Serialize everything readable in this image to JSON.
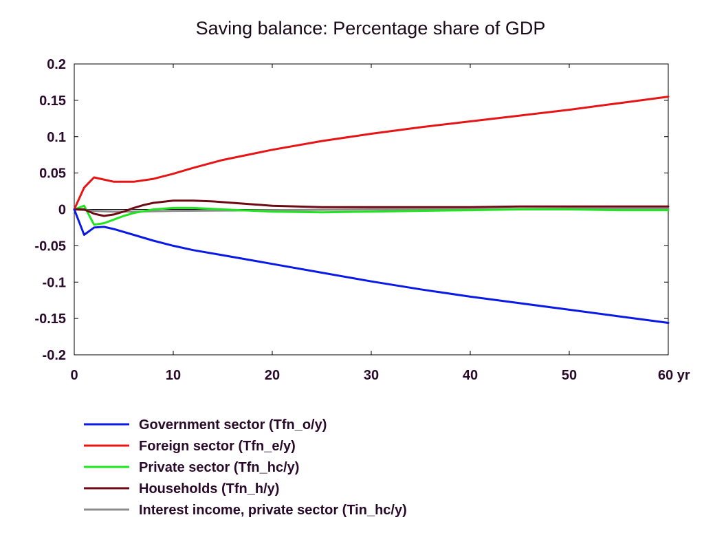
{
  "chart_data": {
    "type": "line",
    "title": "Saving balance: Percentage share of GDP",
    "xlabel": "",
    "ylabel": "",
    "xlim": [
      0,
      60
    ],
    "ylim": [
      -0.2,
      0.2
    ],
    "x_ticks": [
      0,
      10,
      20,
      30,
      40,
      50,
      60
    ],
    "x_tick_labels": [
      "0",
      "10",
      "20",
      "30",
      "40",
      "50",
      "60 yr"
    ],
    "y_ticks": [
      0.2,
      0.15,
      0.1,
      0.05,
      0,
      -0.05,
      -0.1,
      -0.15,
      -0.2
    ],
    "y_tick_labels": [
      "0.2",
      "0.15",
      "0.1",
      "0.05",
      "0",
      "-0.05",
      "-0.1",
      "-0.15",
      "-0.2"
    ],
    "grid": false,
    "legend_position": "bottom",
    "series": [
      {
        "name": "Government sector (Tfn_o/y)",
        "color": "#0a1ae6",
        "x": [
          0,
          1,
          2,
          3,
          4,
          6,
          8,
          10,
          12,
          15,
          20,
          25,
          30,
          35,
          40,
          45,
          50,
          55,
          60
        ],
        "y": [
          0,
          -0.035,
          -0.025,
          -0.024,
          -0.027,
          -0.035,
          -0.043,
          -0.05,
          -0.056,
          -0.063,
          -0.075,
          -0.087,
          -0.099,
          -0.11,
          -0.12,
          -0.129,
          -0.138,
          -0.147,
          -0.156
        ]
      },
      {
        "name": "Foreign sector (Tfn_e/y)",
        "color": "#e61414",
        "x": [
          0,
          1,
          2,
          3,
          4,
          5,
          6,
          8,
          10,
          12,
          15,
          20,
          25,
          30,
          35,
          40,
          45,
          50,
          55,
          60
        ],
        "y": [
          0,
          0.03,
          0.044,
          0.041,
          0.038,
          0.038,
          0.038,
          0.042,
          0.049,
          0.057,
          0.068,
          0.082,
          0.094,
          0.104,
          0.113,
          0.121,
          0.129,
          0.137,
          0.146,
          0.155
        ]
      },
      {
        "name": "Private sector (Tfn_hc/y)",
        "color": "#1ee61e",
        "x": [
          0,
          1,
          2,
          3,
          4,
          5,
          6,
          8,
          10,
          12,
          15,
          20,
          25,
          30,
          35,
          40,
          45,
          50,
          55,
          60
        ],
        "y": [
          0,
          0.005,
          -0.021,
          -0.019,
          -0.014,
          -0.009,
          -0.005,
          0.0,
          0.002,
          0.002,
          0.0,
          -0.003,
          -0.004,
          -0.003,
          -0.002,
          -0.001,
          0.0,
          0.0,
          -0.001,
          -0.001
        ]
      },
      {
        "name": "Households (Tfn_h/y)",
        "color": "#6e0a14",
        "x": [
          0,
          1,
          2,
          3,
          4,
          5,
          6,
          7,
          8,
          10,
          12,
          14,
          16,
          18,
          20,
          25,
          30,
          35,
          40,
          45,
          50,
          55,
          60
        ],
        "y": [
          0,
          0.0,
          -0.006,
          -0.009,
          -0.007,
          -0.003,
          0.002,
          0.006,
          0.009,
          0.012,
          0.012,
          0.011,
          0.009,
          0.007,
          0.005,
          0.003,
          0.003,
          0.003,
          0.003,
          0.004,
          0.004,
          0.004,
          0.004
        ]
      },
      {
        "name": "Interest income, private sector (Tin_hc/y)",
        "color": "#8c8c8c",
        "x": [
          0,
          2,
          4,
          6,
          10,
          20,
          30,
          40,
          50,
          60
        ],
        "y": [
          0,
          -0.002,
          -0.003,
          -0.003,
          -0.002,
          -0.001,
          0.0,
          0.0,
          0.001,
          0.001
        ]
      }
    ]
  }
}
